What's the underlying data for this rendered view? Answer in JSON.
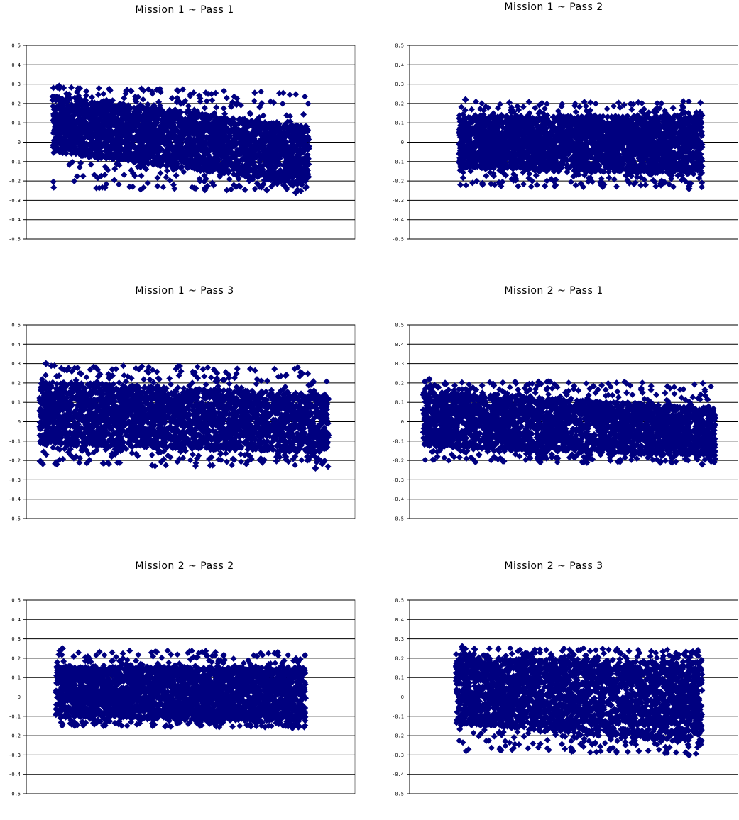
{
  "chart_data": [
    {
      "type": "scatter",
      "title": "Mission 1 ~ Pass 1",
      "ylim": [
        -0.5,
        0.5
      ],
      "ytick_labels": [
        "0.5",
        "0.4",
        "0.3",
        "0.2",
        "0.1",
        "0",
        "-0.1",
        "-0.2",
        "-0.3",
        "-0.4",
        "-0.5"
      ],
      "grid": true,
      "marker": "diamond",
      "color": "#000080",
      "band": {
        "x_start": 0.08,
        "x_end": 0.86,
        "upper_start": 0.24,
        "upper_end": 0.08,
        "lower_start": -0.05,
        "lower_end": -0.22,
        "max": 0.29,
        "min": -0.26
      }
    },
    {
      "type": "scatter",
      "title": "Mission 1 ~ Pass 2",
      "ylim": [
        -0.5,
        0.5
      ],
      "ytick_labels": [
        "0.5",
        "0.4",
        "0.3",
        "0.2",
        "0.1",
        "0",
        "-0.1",
        "-0.2",
        "-0.3",
        "-0.4",
        "-0.5"
      ],
      "grid": true,
      "marker": "diamond",
      "color": "#000080",
      "band": {
        "x_start": 0.15,
        "x_end": 0.89,
        "upper_start": 0.13,
        "upper_end": 0.14,
        "lower_start": -0.13,
        "lower_end": -0.17,
        "max": 0.22,
        "min": -0.24
      }
    },
    {
      "type": "scatter",
      "title": "Mission 1 ~ Pass 3",
      "ylim": [
        -0.5,
        0.5
      ],
      "ytick_labels": [
        "0.5",
        "0.4",
        "0.3",
        "0.2",
        "0.1",
        "0",
        "-0.1",
        "-0.2",
        "-0.3",
        "-0.4",
        "-0.5"
      ],
      "grid": true,
      "marker": "diamond",
      "color": "#000080",
      "band": {
        "x_start": 0.04,
        "x_end": 0.92,
        "upper_start": 0.21,
        "upper_end": 0.14,
        "lower_start": -0.12,
        "lower_end": -0.16,
        "max": 0.3,
        "min": -0.24
      }
    },
    {
      "type": "scatter",
      "title": "Mission 2 ~ Pass 1",
      "ylim": [
        -0.5,
        0.5
      ],
      "ytick_labels": [
        "0.5",
        "0.4",
        "0.3",
        "0.2",
        "0.1",
        "0",
        "-0.1",
        "-0.2",
        "-0.3",
        "-0.4",
        "-0.5"
      ],
      "grid": true,
      "marker": "diamond",
      "color": "#000080",
      "band": {
        "x_start": 0.04,
        "x_end": 0.93,
        "upper_start": 0.16,
        "upper_end": 0.07,
        "lower_start": -0.13,
        "lower_end": -0.18,
        "max": 0.22,
        "min": -0.22
      }
    },
    {
      "type": "scatter",
      "title": "Mission 2 ~ Pass 2",
      "ylim": [
        -0.5,
        0.5
      ],
      "ytick_labels": [
        "0.5",
        "0.4",
        "0.3",
        "0.2",
        "0.1",
        "0",
        "-0.1",
        "-0.2",
        "-0.3",
        "-0.4",
        "-0.5"
      ],
      "grid": true,
      "marker": "diamond",
      "color": "#000080",
      "band": {
        "x_start": 0.09,
        "x_end": 0.85,
        "upper_start": 0.16,
        "upper_end": 0.15,
        "lower_start": -0.1,
        "lower_end": -0.13,
        "max": 0.25,
        "min": -0.16
      }
    },
    {
      "type": "scatter",
      "title": "Mission 2 ~ Pass 3",
      "ylim": [
        -0.5,
        0.5
      ],
      "ytick_labels": [
        "0.5",
        "0.4",
        "0.3",
        "0.2",
        "0.1",
        "0",
        "-0.1",
        "-0.2",
        "-0.3",
        "-0.4",
        "-0.5"
      ],
      "grid": true,
      "marker": "diamond",
      "color": "#000080",
      "band": {
        "x_start": 0.14,
        "x_end": 0.89,
        "upper_start": 0.2,
        "upper_end": 0.18,
        "lower_start": -0.14,
        "lower_end": -0.24,
        "max": 0.26,
        "min": -0.3
      }
    }
  ]
}
